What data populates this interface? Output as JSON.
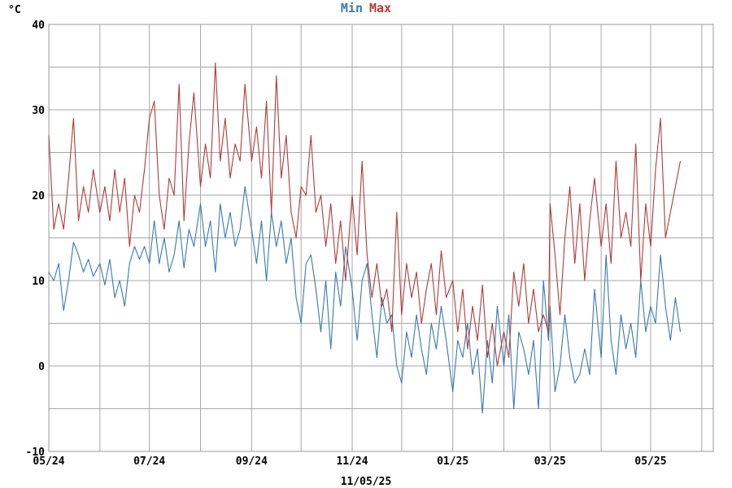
{
  "chart_data": {
    "type": "line",
    "title": "",
    "ylabel": "°C",
    "xlabel": "11/05/25",
    "ylim": [
      -10,
      40
    ],
    "yticks": [
      -10,
      0,
      10,
      20,
      30,
      40
    ],
    "grid": true,
    "legend_placement": "top-center",
    "x_range": [
      "2024-05-01",
      "2025-06-08"
    ],
    "x_ticks": [
      {
        "date": "2024-05-01",
        "label": "05/24"
      },
      {
        "date": "2024-06-01",
        "label": ""
      },
      {
        "date": "2024-07-01",
        "label": "07/24"
      },
      {
        "date": "2024-08-01",
        "label": ""
      },
      {
        "date": "2024-09-01",
        "label": "09/24"
      },
      {
        "date": "2024-10-01",
        "label": ""
      },
      {
        "date": "2024-11-01",
        "label": "11/24"
      },
      {
        "date": "2024-12-01",
        "label": ""
      },
      {
        "date": "2025-01-01",
        "label": "01/25"
      },
      {
        "date": "2025-02-01",
        "label": ""
      },
      {
        "date": "2025-03-01",
        "label": "03/25"
      },
      {
        "date": "2025-04-01",
        "label": ""
      },
      {
        "date": "2025-05-01",
        "label": "05/25"
      },
      {
        "date": "2025-06-01",
        "label": ""
      }
    ],
    "series": [
      {
        "name": "Min",
        "color": "#3a78b0",
        "points": [
          [
            "2024-05-01",
            11
          ],
          [
            "2024-05-04",
            10
          ],
          [
            "2024-05-07",
            12
          ],
          [
            "2024-05-10",
            6.5
          ],
          [
            "2024-05-13",
            10
          ],
          [
            "2024-05-16",
            14.5
          ],
          [
            "2024-05-19",
            13
          ],
          [
            "2024-05-22",
            11
          ],
          [
            "2024-05-25",
            12.5
          ],
          [
            "2024-05-28",
            10.5
          ],
          [
            "2024-06-01",
            12
          ],
          [
            "2024-06-04",
            9.5
          ],
          [
            "2024-06-07",
            12.5
          ],
          [
            "2024-06-10",
            8
          ],
          [
            "2024-06-13",
            10
          ],
          [
            "2024-06-16",
            7
          ],
          [
            "2024-06-19",
            12
          ],
          [
            "2024-06-22",
            14
          ],
          [
            "2024-06-25",
            12.5
          ],
          [
            "2024-06-28",
            14
          ],
          [
            "2024-07-01",
            12
          ],
          [
            "2024-07-04",
            17
          ],
          [
            "2024-07-07",
            12
          ],
          [
            "2024-07-10",
            15
          ],
          [
            "2024-07-13",
            11
          ],
          [
            "2024-07-16",
            13
          ],
          [
            "2024-07-19",
            17
          ],
          [
            "2024-07-22",
            11.5
          ],
          [
            "2024-07-25",
            16
          ],
          [
            "2024-07-28",
            14
          ],
          [
            "2024-08-01",
            19
          ],
          [
            "2024-08-04",
            14
          ],
          [
            "2024-08-07",
            17
          ],
          [
            "2024-08-10",
            11
          ],
          [
            "2024-08-13",
            19
          ],
          [
            "2024-08-16",
            15
          ],
          [
            "2024-08-19",
            18
          ],
          [
            "2024-08-22",
            14
          ],
          [
            "2024-08-25",
            16
          ],
          [
            "2024-08-28",
            21
          ],
          [
            "2024-09-01",
            16
          ],
          [
            "2024-09-04",
            12
          ],
          [
            "2024-09-07",
            17
          ],
          [
            "2024-09-10",
            10
          ],
          [
            "2024-09-13",
            18
          ],
          [
            "2024-09-16",
            14
          ],
          [
            "2024-09-19",
            17
          ],
          [
            "2024-09-22",
            12
          ],
          [
            "2024-09-25",
            15
          ],
          [
            "2024-09-28",
            8
          ],
          [
            "2024-10-01",
            5
          ],
          [
            "2024-10-04",
            12
          ],
          [
            "2024-10-07",
            13
          ],
          [
            "2024-10-10",
            9
          ],
          [
            "2024-10-13",
            4
          ],
          [
            "2024-10-16",
            10
          ],
          [
            "2024-10-19",
            2
          ],
          [
            "2024-10-22",
            11
          ],
          [
            "2024-10-25",
            7
          ],
          [
            "2024-10-28",
            14
          ],
          [
            "2024-11-01",
            9
          ],
          [
            "2024-11-04",
            3
          ],
          [
            "2024-11-07",
            10
          ],
          [
            "2024-11-10",
            12
          ],
          [
            "2024-11-13",
            6
          ],
          [
            "2024-11-16",
            1
          ],
          [
            "2024-11-19",
            8
          ],
          [
            "2024-11-22",
            5
          ],
          [
            "2024-11-25",
            6
          ],
          [
            "2024-11-28",
            0
          ],
          [
            "2024-12-01",
            -2
          ],
          [
            "2024-12-04",
            4
          ],
          [
            "2024-12-07",
            1
          ],
          [
            "2024-12-10",
            6
          ],
          [
            "2024-12-13",
            2
          ],
          [
            "2024-12-16",
            -1
          ],
          [
            "2024-12-19",
            5
          ],
          [
            "2024-12-22",
            2
          ],
          [
            "2024-12-25",
            7
          ],
          [
            "2024-12-28",
            3
          ],
          [
            "2025-01-01",
            -3
          ],
          [
            "2025-01-04",
            3
          ],
          [
            "2025-01-07",
            1
          ],
          [
            "2025-01-10",
            5
          ],
          [
            "2025-01-13",
            -1
          ],
          [
            "2025-01-16",
            2
          ],
          [
            "2025-01-19",
            -5.5
          ],
          [
            "2025-01-22",
            3
          ],
          [
            "2025-01-25",
            -2
          ],
          [
            "2025-01-28",
            7
          ],
          [
            "2025-02-01",
            0
          ],
          [
            "2025-02-04",
            6
          ],
          [
            "2025-02-07",
            -5
          ],
          [
            "2025-02-10",
            4
          ],
          [
            "2025-02-13",
            2
          ],
          [
            "2025-02-16",
            -1
          ],
          [
            "2025-02-19",
            3
          ],
          [
            "2025-02-22",
            -5
          ],
          [
            "2025-02-25",
            10
          ],
          [
            "2025-02-28",
            3
          ],
          [
            "2025-03-01",
            7
          ],
          [
            "2025-03-04",
            -3
          ],
          [
            "2025-03-07",
            0
          ],
          [
            "2025-03-10",
            6
          ],
          [
            "2025-03-13",
            1
          ],
          [
            "2025-03-16",
            -2
          ],
          [
            "2025-03-19",
            -1
          ],
          [
            "2025-03-22",
            2
          ],
          [
            "2025-03-25",
            -1
          ],
          [
            "2025-03-28",
            9
          ],
          [
            "2025-04-01",
            1
          ],
          [
            "2025-04-04",
            13
          ],
          [
            "2025-04-07",
            3
          ],
          [
            "2025-04-10",
            -1
          ],
          [
            "2025-04-13",
            6
          ],
          [
            "2025-04-16",
            2
          ],
          [
            "2025-04-19",
            5
          ],
          [
            "2025-04-22",
            1
          ],
          [
            "2025-04-25",
            10
          ],
          [
            "2025-04-28",
            4
          ],
          [
            "2025-05-01",
            7
          ],
          [
            "2025-05-04",
            5
          ],
          [
            "2025-05-07",
            13
          ],
          [
            "2025-05-10",
            7
          ],
          [
            "2025-05-13",
            3
          ],
          [
            "2025-05-16",
            8
          ],
          [
            "2025-05-19",
            4
          ]
        ]
      },
      {
        "name": "Max",
        "color": "#b03a3a",
        "points": [
          [
            "2024-05-01",
            27
          ],
          [
            "2024-05-04",
            16
          ],
          [
            "2024-05-07",
            19
          ],
          [
            "2024-05-10",
            16
          ],
          [
            "2024-05-13",
            22
          ],
          [
            "2024-05-16",
            29
          ],
          [
            "2024-05-19",
            17
          ],
          [
            "2024-05-22",
            21
          ],
          [
            "2024-05-25",
            18
          ],
          [
            "2024-05-28",
            23
          ],
          [
            "2024-06-01",
            18
          ],
          [
            "2024-06-04",
            21
          ],
          [
            "2024-06-07",
            17
          ],
          [
            "2024-06-10",
            23
          ],
          [
            "2024-06-13",
            18
          ],
          [
            "2024-06-16",
            22
          ],
          [
            "2024-06-19",
            14
          ],
          [
            "2024-06-22",
            20
          ],
          [
            "2024-06-25",
            18
          ],
          [
            "2024-06-28",
            23
          ],
          [
            "2024-07-01",
            29
          ],
          [
            "2024-07-04",
            31
          ],
          [
            "2024-07-07",
            20
          ],
          [
            "2024-07-10",
            16
          ],
          [
            "2024-07-13",
            22
          ],
          [
            "2024-07-16",
            20
          ],
          [
            "2024-07-19",
            33
          ],
          [
            "2024-07-22",
            17
          ],
          [
            "2024-07-25",
            26
          ],
          [
            "2024-07-28",
            32
          ],
          [
            "2024-08-01",
            21
          ],
          [
            "2024-08-04",
            26
          ],
          [
            "2024-08-07",
            22
          ],
          [
            "2024-08-10",
            35.5
          ],
          [
            "2024-08-13",
            24
          ],
          [
            "2024-08-16",
            29
          ],
          [
            "2024-08-19",
            22
          ],
          [
            "2024-08-22",
            26
          ],
          [
            "2024-08-25",
            24
          ],
          [
            "2024-08-28",
            33
          ],
          [
            "2024-09-01",
            24
          ],
          [
            "2024-09-04",
            28
          ],
          [
            "2024-09-07",
            22
          ],
          [
            "2024-09-10",
            31
          ],
          [
            "2024-09-13",
            18
          ],
          [
            "2024-09-16",
            34
          ],
          [
            "2024-09-19",
            22
          ],
          [
            "2024-09-22",
            27
          ],
          [
            "2024-09-25",
            18
          ],
          [
            "2024-09-28",
            15
          ],
          [
            "2024-10-01",
            21
          ],
          [
            "2024-10-04",
            20
          ],
          [
            "2024-10-07",
            27
          ],
          [
            "2024-10-10",
            18
          ],
          [
            "2024-10-13",
            20
          ],
          [
            "2024-10-16",
            14
          ],
          [
            "2024-10-19",
            19
          ],
          [
            "2024-10-22",
            12
          ],
          [
            "2024-10-25",
            17
          ],
          [
            "2024-10-28",
            10
          ],
          [
            "2024-11-01",
            20
          ],
          [
            "2024-11-04",
            13
          ],
          [
            "2024-11-07",
            24
          ],
          [
            "2024-11-10",
            13
          ],
          [
            "2024-11-13",
            8
          ],
          [
            "2024-11-16",
            12
          ],
          [
            "2024-11-19",
            7
          ],
          [
            "2024-11-22",
            9
          ],
          [
            "2024-11-25",
            4
          ],
          [
            "2024-11-28",
            18
          ],
          [
            "2024-12-01",
            6
          ],
          [
            "2024-12-04",
            12
          ],
          [
            "2024-12-07",
            8
          ],
          [
            "2024-12-10",
            11
          ],
          [
            "2024-12-13",
            5
          ],
          [
            "2024-12-16",
            9
          ],
          [
            "2024-12-19",
            12
          ],
          [
            "2024-12-22",
            6
          ],
          [
            "2024-12-25",
            13.5
          ],
          [
            "2024-12-28",
            8
          ],
          [
            "2025-01-01",
            10
          ],
          [
            "2025-01-04",
            4
          ],
          [
            "2025-01-07",
            9
          ],
          [
            "2025-01-10",
            2
          ],
          [
            "2025-01-13",
            7
          ],
          [
            "2025-01-16",
            3
          ],
          [
            "2025-01-19",
            9.5
          ],
          [
            "2025-01-22",
            1
          ],
          [
            "2025-01-25",
            5
          ],
          [
            "2025-01-28",
            0
          ],
          [
            "2025-02-01",
            4
          ],
          [
            "2025-02-04",
            1
          ],
          [
            "2025-02-07",
            11
          ],
          [
            "2025-02-10",
            7
          ],
          [
            "2025-02-13",
            12
          ],
          [
            "2025-02-16",
            5
          ],
          [
            "2025-02-19",
            9
          ],
          [
            "2025-02-22",
            4
          ],
          [
            "2025-02-25",
            6
          ],
          [
            "2025-02-28",
            4
          ],
          [
            "2025-03-01",
            19
          ],
          [
            "2025-03-04",
            13
          ],
          [
            "2025-03-07",
            6
          ],
          [
            "2025-03-10",
            15
          ],
          [
            "2025-03-13",
            21
          ],
          [
            "2025-03-16",
            12
          ],
          [
            "2025-03-19",
            19
          ],
          [
            "2025-03-22",
            10
          ],
          [
            "2025-03-25",
            17
          ],
          [
            "2025-03-28",
            22
          ],
          [
            "2025-04-01",
            14
          ],
          [
            "2025-04-04",
            19
          ],
          [
            "2025-04-07",
            12
          ],
          [
            "2025-04-10",
            24
          ],
          [
            "2025-04-13",
            15
          ],
          [
            "2025-04-16",
            18
          ],
          [
            "2025-04-19",
            14
          ],
          [
            "2025-04-22",
            26
          ],
          [
            "2025-04-25",
            10
          ],
          [
            "2025-04-28",
            19
          ],
          [
            "2025-05-01",
            14
          ],
          [
            "2025-05-04",
            23
          ],
          [
            "2025-05-07",
            29
          ],
          [
            "2025-05-10",
            15
          ],
          [
            "2025-05-13",
            18
          ],
          [
            "2025-05-16",
            21
          ],
          [
            "2025-05-19",
            24
          ]
        ]
      }
    ]
  }
}
